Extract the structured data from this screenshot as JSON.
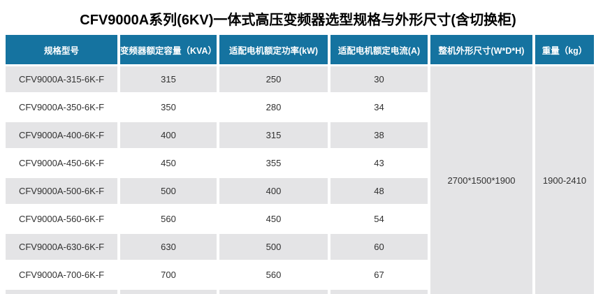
{
  "title": "CFV9000A系列(6KV)一体式高压变频器选型规格与外形尺寸(含切换柜)",
  "colors": {
    "header_bg": "#1573a0",
    "header_text": "#ffffff",
    "row_alt_bg": "#e4e4e6",
    "row_bg": "#ffffff",
    "body_text": "#303030"
  },
  "table": {
    "columns": [
      "规格型号",
      "变频器额定容量（KVA）",
      "适配电机额定功率(kW)",
      "适配电机额定电流(A)",
      "整机外形尺寸(W*D*H)",
      "重量（kg）"
    ],
    "rows": [
      {
        "model": "CFV9000A-315-6K-F",
        "capacity_kva": "315",
        "power_kw": "250",
        "current_a": "30"
      },
      {
        "model": "CFV9000A-350-6K-F",
        "capacity_kva": "350",
        "power_kw": "280",
        "current_a": "34"
      },
      {
        "model": "CFV9000A-400-6K-F",
        "capacity_kva": "400",
        "power_kw": "315",
        "current_a": "38"
      },
      {
        "model": "CFV9000A-450-6K-F",
        "capacity_kva": "450",
        "power_kw": "355",
        "current_a": "43"
      },
      {
        "model": "CFV9000A-500-6K-F",
        "capacity_kva": "500",
        "power_kw": "400",
        "current_a": "48"
      },
      {
        "model": "CFV9000A-560-6K-F",
        "capacity_kva": "560",
        "power_kw": "450",
        "current_a": "54"
      },
      {
        "model": "CFV9000A-630-6K-F",
        "capacity_kva": "630",
        "power_kw": "500",
        "current_a": "60"
      },
      {
        "model": "CFV9000A-700-6K-F",
        "capacity_kva": "700",
        "power_kw": "560",
        "current_a": "67"
      }
    ],
    "merged": {
      "dimensions": "2700*1500*1900",
      "weight": "1900-2410"
    }
  }
}
